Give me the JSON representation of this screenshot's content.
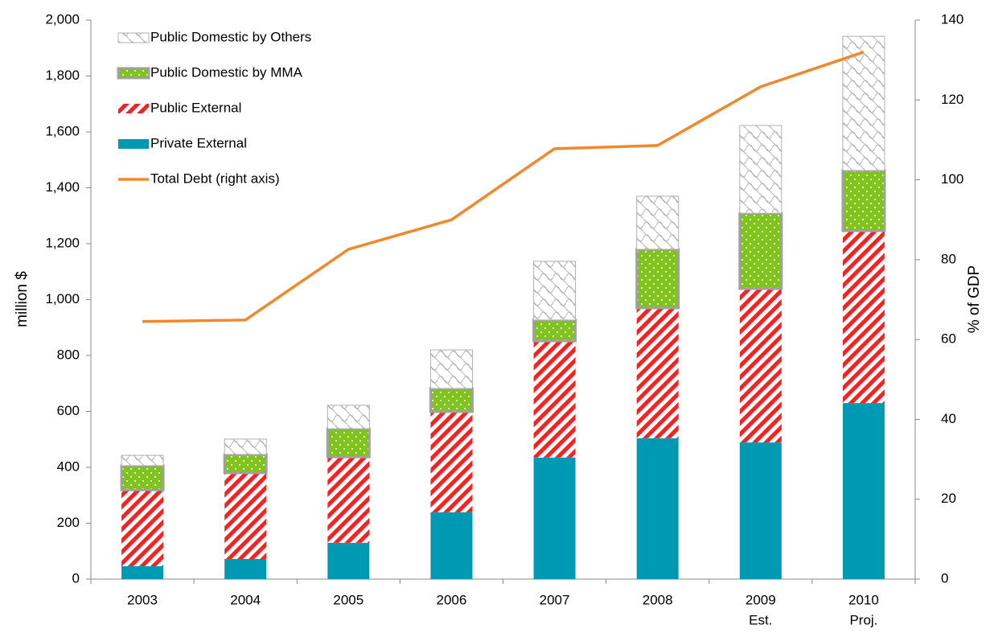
{
  "chart_data": {
    "type": "bar_line",
    "categories": [
      "2003",
      "2004",
      "2005",
      "2006",
      "2007",
      "2008",
      "2009",
      "2010"
    ],
    "category_sublabels": [
      null,
      null,
      null,
      null,
      null,
      null,
      "Est.",
      "Proj."
    ],
    "y_label": "million $",
    "y2_label": "% of GDP",
    "ylim": [
      0,
      2000
    ],
    "yticks": [
      0,
      200,
      400,
      600,
      800,
      {
        "value": 1000,
        "label": "1,000"
      },
      {
        "value": 1200,
        "label": "1,200"
      },
      {
        "value": 1400,
        "label": "1,400"
      },
      {
        "value": 1600,
        "label": "1,600"
      },
      {
        "value": 1800,
        "label": "1,800"
      },
      {
        "value": 2000,
        "label": "2,000"
      }
    ],
    "y2lim": [
      0,
      140
    ],
    "y2ticks": [
      0,
      20,
      40,
      60,
      80,
      100,
      120,
      140
    ],
    "legend": "upper-left",
    "series": [
      {
        "name": "Private External",
        "color": "#0099b3",
        "pattern": "solid",
        "values": [
          46,
          72,
          130,
          239,
          435,
          504,
          489,
          630
        ]
      },
      {
        "name": "Public External",
        "color": "#ff2020",
        "pattern": "stripes",
        "values": [
          273,
          308,
          307,
          360,
          417,
          466,
          550,
          616
        ]
      },
      {
        "name": "Public Domestic by MMA",
        "color": "#7fc31c",
        "pattern": "dots",
        "values": [
          87,
          66,
          101,
          83,
          75,
          210,
          270,
          216
        ]
      },
      {
        "name": "Public Domestic by Others",
        "color": "#b0b0b0",
        "pattern": "crosshatch",
        "values": [
          37,
          55,
          84,
          138,
          210,
          190,
          314,
          480
        ]
      },
      {
        "name": "Total Debt (right axis)",
        "color": "#f0892b",
        "type": "line",
        "axis": "y2",
        "values": [
          64.5,
          64.9,
          82.6,
          90,
          107.8,
          108.6,
          123.3,
          132
        ]
      }
    ]
  }
}
